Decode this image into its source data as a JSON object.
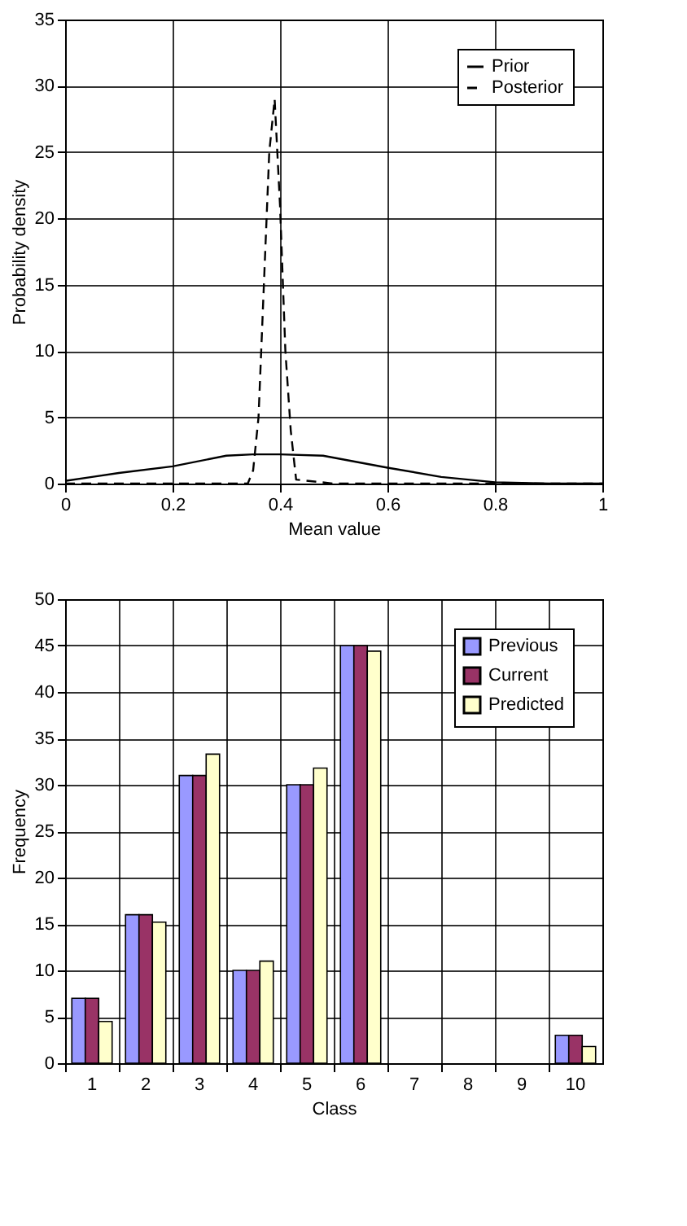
{
  "chart_data": [
    {
      "type": "line",
      "xlabel": "Mean value",
      "ylabel": "Probability density",
      "xlim": [
        0,
        1
      ],
      "xticks": [
        0,
        0.2,
        0.4,
        0.6,
        0.8,
        1
      ],
      "ylim": [
        0,
        35
      ],
      "yticks": [
        0,
        5,
        10,
        15,
        20,
        25,
        30,
        35
      ],
      "grid": true,
      "legend": "top right",
      "marker": "none",
      "series": [
        {
          "name": "Prior",
          "color": "#000000",
          "line_style": "solid",
          "x": [
            0,
            0.05,
            0.1,
            0.2,
            0.3,
            0.35,
            0.4,
            0.48,
            0.6,
            0.7,
            0.8,
            0.9,
            1
          ],
          "values": [
            0.2,
            0.5,
            0.8,
            1.3,
            2.1,
            2.2,
            2.2,
            2.1,
            1.2,
            0.5,
            0.1,
            0,
            0
          ]
        },
        {
          "name": "Posterior",
          "color": "#000000",
          "line_style": "dashed",
          "x": [
            0,
            0.34,
            0.35,
            0.36,
            0.37,
            0.38,
            0.39,
            0.4,
            0.41,
            0.42,
            0.43,
            0.5,
            1
          ],
          "values": [
            0,
            0,
            1,
            5,
            15,
            25,
            29,
            21,
            10,
            4,
            0.3,
            0,
            0
          ]
        }
      ]
    },
    {
      "type": "bar",
      "xlabel": "Class",
      "ylabel": "Frequency",
      "categories": [
        "1",
        "2",
        "3",
        "4",
        "5",
        "6",
        "7",
        "8",
        "9",
        "10"
      ],
      "ylim": [
        0,
        50
      ],
      "yticks": [
        0,
        5,
        10,
        15,
        20,
        25,
        30,
        35,
        40,
        45,
        50
      ],
      "grid": true,
      "legend": "top right",
      "series": [
        {
          "name": "Previous",
          "color": "#9999ff",
          "values": [
            7,
            16,
            31,
            10,
            30,
            45,
            0,
            0,
            0,
            3
          ]
        },
        {
          "name": "Current",
          "color": "#993366",
          "values": [
            7,
            16,
            31,
            10,
            30,
            45,
            0,
            0,
            0,
            3
          ]
        },
        {
          "name": "Predicted",
          "color": "#ffffcc",
          "values": [
            4.5,
            15.2,
            33.3,
            11,
            31.8,
            44.4,
            0,
            0,
            0,
            1.8
          ]
        }
      ]
    }
  ]
}
